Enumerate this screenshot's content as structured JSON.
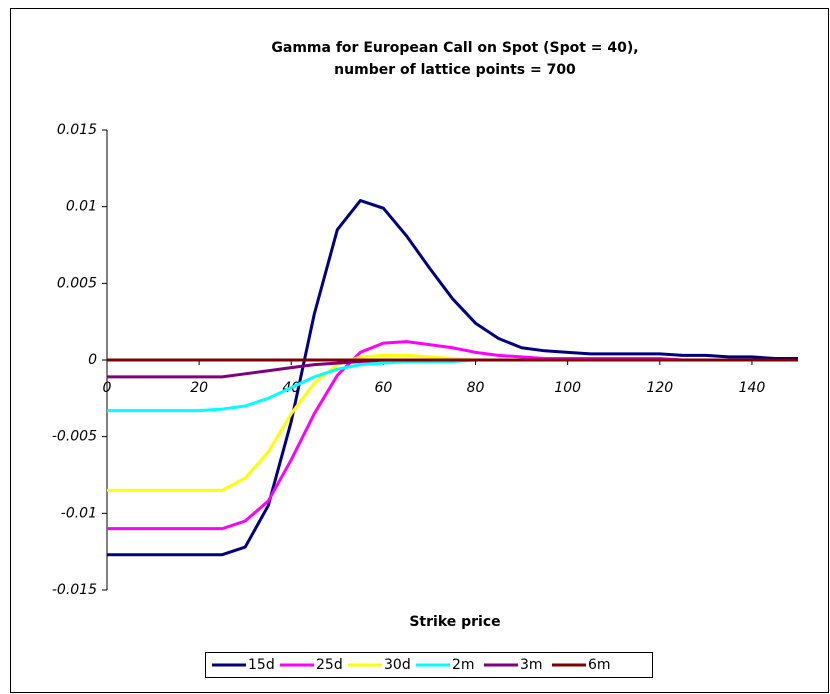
{
  "chart_data": {
    "type": "line",
    "title": [
      "Gamma for European Call on Spot (Spot = 40),",
      "number of lattice points = 700"
    ],
    "x_label": "Strike price",
    "x": [
      0,
      5,
      10,
      15,
      20,
      25,
      30,
      35,
      40,
      45,
      50,
      55,
      60,
      65,
      70,
      75,
      80,
      85,
      90,
      95,
      100,
      105,
      110,
      115,
      120,
      125,
      130,
      135,
      140,
      145,
      150
    ],
    "series": [
      {
        "name": "15d",
        "color": "#000080",
        "values": [
          -0.0127,
          -0.0127,
          -0.0127,
          -0.0127,
          -0.0127,
          -0.0127,
          -0.0122,
          -0.0095,
          -0.004,
          0.003,
          0.0085,
          0.0104,
          0.0099,
          0.0081,
          0.006,
          0.004,
          0.0024,
          0.0014,
          0.0008,
          0.0006,
          0.0005,
          0.0004,
          0.0004,
          0.0004,
          0.0004,
          0.0003,
          0.0003,
          0.0002,
          0.0002,
          0.0001,
          0.0001
        ]
      },
      {
        "name": "25d",
        "color": "#ff00ff",
        "values": [
          -0.011,
          -0.011,
          -0.011,
          -0.011,
          -0.011,
          -0.011,
          -0.0105,
          -0.0092,
          -0.0065,
          -0.0035,
          -0.001,
          0.0005,
          0.0011,
          0.0012,
          0.001,
          0.0008,
          0.0005,
          0.0003,
          0.0002,
          0.0001,
          0.0001,
          0.0001,
          0.0001,
          0.0001,
          0.0001,
          0,
          0,
          0,
          0,
          0,
          0
        ]
      },
      {
        "name": "30d",
        "color": "#ffff00",
        "values": [
          -0.0085,
          -0.0085,
          -0.0085,
          -0.0085,
          -0.0085,
          -0.0085,
          -0.0077,
          -0.006,
          -0.0035,
          -0.0015,
          -0.0003,
          0.0002,
          0.0003,
          0.0003,
          0.0002,
          0.0001,
          0,
          0,
          0,
          0,
          0,
          0,
          0,
          0,
          0,
          0,
          0,
          0,
          0,
          0,
          0
        ]
      },
      {
        "name": "2m",
        "color": "#00ffff",
        "values": [
          -0.0033,
          -0.0033,
          -0.0033,
          -0.0033,
          -0.0033,
          -0.0032,
          -0.003,
          -0.0025,
          -0.0018,
          -0.0011,
          -0.0006,
          -0.0003,
          -0.0002,
          -0.0001,
          -0.0001,
          -0.0001,
          0,
          0,
          0,
          0,
          0,
          0,
          0,
          0,
          0,
          0,
          0,
          0,
          0,
          0,
          0
        ]
      },
      {
        "name": "3m",
        "color": "#800080",
        "values": [
          -0.0011,
          -0.0011,
          -0.0011,
          -0.0011,
          -0.0011,
          -0.0011,
          -0.0009,
          -0.0007,
          -0.0005,
          -0.0003,
          -0.0002,
          -0.0001,
          0,
          0,
          0,
          0,
          0,
          0,
          0,
          0,
          0,
          0,
          0,
          0,
          0,
          0,
          0,
          0,
          0,
          0,
          0
        ]
      },
      {
        "name": "6m",
        "color": "#800000",
        "values": [
          0,
          0,
          0,
          0,
          0,
          0,
          0,
          0,
          0,
          0,
          0,
          0,
          0,
          0,
          0,
          0,
          0,
          0,
          0,
          0,
          0,
          0,
          0,
          0,
          0,
          0,
          0,
          0,
          0,
          0,
          0
        ]
      }
    ],
    "xlim": [
      0,
      150
    ],
    "xticks": [
      0,
      20,
      40,
      60,
      80,
      100,
      120,
      140
    ],
    "ylim": [
      -0.015,
      0.015
    ],
    "yticks": [
      0.015,
      0.01,
      0.005,
      0,
      -0.005,
      -0.01,
      -0.015
    ],
    "legend": "bottom"
  }
}
